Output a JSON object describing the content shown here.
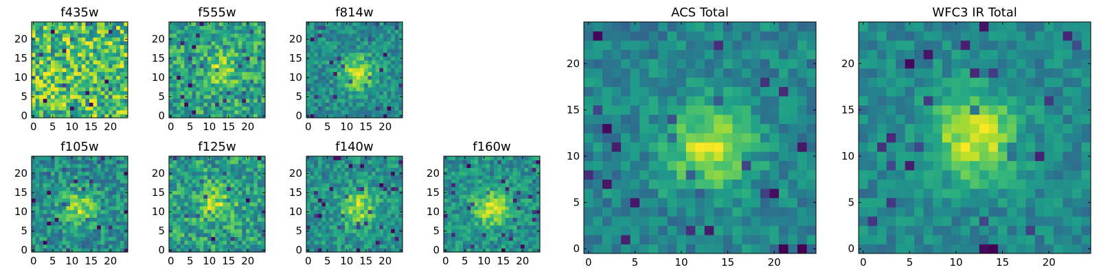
{
  "chart_data": [
    {
      "type": "heatmap",
      "title": "f435w",
      "xlim": [
        0,
        24
      ],
      "ylim": [
        0,
        24
      ],
      "xticks": [
        0,
        5,
        10,
        15,
        20
      ],
      "yticks": [
        0,
        5,
        10,
        15,
        20
      ],
      "grid": false,
      "size": [
        25,
        25
      ],
      "center": [
        12,
        12
      ],
      "peak": 0.0,
      "noise": 0.75,
      "seed": 11
    },
    {
      "type": "heatmap",
      "title": "f555w",
      "xlim": [
        0,
        24
      ],
      "ylim": [
        0,
        24
      ],
      "xticks": [
        0,
        5,
        10,
        15,
        20
      ],
      "yticks": [
        0,
        5,
        10,
        15,
        20
      ],
      "grid": false,
      "size": [
        25,
        25
      ],
      "center": [
        13,
        12
      ],
      "peak": 0.3,
      "noise": 0.6,
      "seed": 23
    },
    {
      "type": "heatmap",
      "title": "f814w",
      "xlim": [
        0,
        24
      ],
      "ylim": [
        0,
        24
      ],
      "xticks": [
        0,
        5,
        10,
        15,
        20
      ],
      "yticks": [
        0,
        5,
        10,
        15,
        20
      ],
      "grid": false,
      "size": [
        25,
        25
      ],
      "center": [
        13,
        11
      ],
      "peak": 0.6,
      "noise": 0.45,
      "seed": 37
    },
    {
      "type": "heatmap",
      "title": "f105w",
      "xlim": [
        0,
        24
      ],
      "ylim": [
        0,
        24
      ],
      "xticks": [
        0,
        5,
        10,
        15,
        20
      ],
      "yticks": [
        0,
        5,
        10,
        15,
        20
      ],
      "grid": false,
      "size": [
        25,
        25
      ],
      "center": [
        12,
        11
      ],
      "peak": 0.45,
      "noise": 0.5,
      "seed": 41
    },
    {
      "type": "heatmap",
      "title": "f125w",
      "xlim": [
        0,
        24
      ],
      "ylim": [
        0,
        24
      ],
      "xticks": [
        0,
        5,
        10,
        15,
        20
      ],
      "yticks": [
        0,
        5,
        10,
        15,
        20
      ],
      "grid": false,
      "size": [
        25,
        25
      ],
      "center": [
        12,
        12
      ],
      "peak": 0.35,
      "noise": 0.55,
      "seed": 53
    },
    {
      "type": "heatmap",
      "title": "f140w",
      "xlim": [
        0,
        24
      ],
      "ylim": [
        0,
        24
      ],
      "xticks": [
        0,
        5,
        10,
        15,
        20
      ],
      "yticks": [
        0,
        5,
        10,
        15,
        20
      ],
      "grid": false,
      "size": [
        25,
        25
      ],
      "center": [
        13,
        11
      ],
      "peak": 0.5,
      "noise": 0.45,
      "seed": 67
    },
    {
      "type": "heatmap",
      "title": "f160w",
      "xlim": [
        0,
        24
      ],
      "ylim": [
        0,
        24
      ],
      "xticks": [
        0,
        5,
        10,
        15,
        20
      ],
      "yticks": [
        0,
        5,
        10,
        15,
        20
      ],
      "grid": false,
      "size": [
        25,
        25
      ],
      "center": [
        12,
        11
      ],
      "peak": 0.55,
      "noise": 0.45,
      "seed": 71
    },
    {
      "type": "heatmap",
      "title": "ACS Total",
      "xlim": [
        0,
        24
      ],
      "ylim": [
        0,
        24
      ],
      "xticks": [
        0,
        5,
        10,
        15,
        20
      ],
      "yticks": [
        0,
        5,
        10,
        15,
        20
      ],
      "grid": false,
      "size": [
        25,
        25
      ],
      "center": [
        13,
        11
      ],
      "peak": 0.65,
      "noise": 0.4,
      "seed": 83
    },
    {
      "type": "heatmap",
      "title": "WFC3 IR Total",
      "xlim": [
        0,
        24
      ],
      "ylim": [
        0,
        24
      ],
      "xticks": [
        0,
        5,
        10,
        15,
        20
      ],
      "yticks": [
        0,
        5,
        10,
        15,
        20
      ],
      "grid": false,
      "size": [
        25,
        25
      ],
      "center": [
        12,
        12
      ],
      "peak": 0.7,
      "noise": 0.35,
      "seed": 97
    }
  ],
  "colormap": [
    "#440154",
    "#482878",
    "#3e4989",
    "#31688e",
    "#26828e",
    "#1f9e89",
    "#35b779",
    "#6ece58",
    "#b5de2b",
    "#fde725"
  ]
}
